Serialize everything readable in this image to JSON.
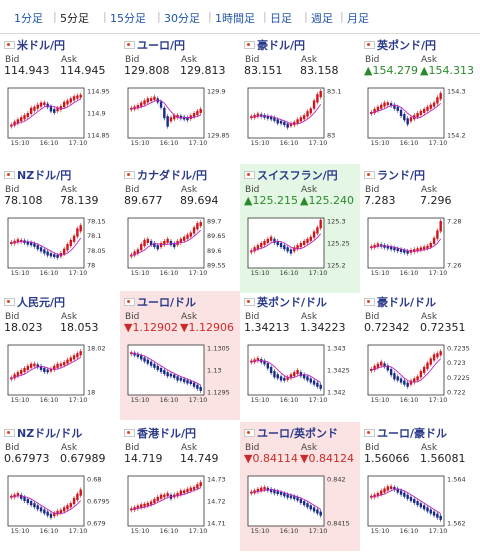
{
  "tabs": [
    {
      "label": "1分足",
      "active": false
    },
    {
      "label": "5分足",
      "active": true
    },
    {
      "label": "15分足",
      "active": false
    },
    {
      "label": "30分足",
      "active": false
    },
    {
      "label": "1時間足",
      "active": false
    },
    {
      "label": "日足",
      "active": false
    },
    {
      "label": "週足",
      "active": false
    },
    {
      "label": "月足",
      "active": false
    }
  ],
  "labels": {
    "bid": "Bid",
    "ask": "Ask"
  },
  "time_ticks": [
    "15:10",
    "16:10",
    "17:10"
  ],
  "colors": {
    "candle": "#d0141a",
    "line": "#c026c0",
    "axis": "#333333",
    "up_text": "#2b8a2b",
    "down_text": "#cc2a2a"
  },
  "pairs": [
    {
      "name": "米ドル/円",
      "bid": "114.943",
      "ask": "114.945",
      "dir": "",
      "hl": "",
      "flag": "us-flag-icon",
      "ticks": [
        "114.95",
        "114.9",
        "114.85"
      ],
      "series": [
        0.2,
        0.25,
        0.3,
        0.35,
        0.4,
        0.45,
        0.55,
        0.6,
        0.65,
        0.7,
        0.72,
        0.68,
        0.6,
        0.55,
        0.58,
        0.62,
        0.7,
        0.75,
        0.8,
        0.85,
        0.88,
        0.9
      ]
    },
    {
      "name": "ユーロ/円",
      "bid": "129.808",
      "ask": "129.813",
      "dir": "",
      "hl": "",
      "flag": "eu-flag-icon",
      "ticks": [
        "129.9",
        "129.85"
      ],
      "series": [
        0.6,
        0.62,
        0.65,
        0.7,
        0.75,
        0.8,
        0.82,
        0.85,
        0.8,
        0.7,
        0.5,
        0.3,
        0.35,
        0.4,
        0.42,
        0.4,
        0.38,
        0.36,
        0.4,
        0.45,
        0.5,
        0.55
      ]
    },
    {
      "name": "豪ドル/円",
      "bid": "83.151",
      "ask": "83.158",
      "dir": "",
      "hl": "",
      "flag": "au-flag-icon",
      "ticks": [
        "83.1",
        "83"
      ],
      "series": [
        0.4,
        0.42,
        0.45,
        0.44,
        0.42,
        0.4,
        0.38,
        0.35,
        0.3,
        0.28,
        0.25,
        0.2,
        0.22,
        0.25,
        0.3,
        0.35,
        0.4,
        0.48,
        0.55,
        0.7,
        0.85,
        0.95
      ]
    },
    {
      "name": "英ポンド/円",
      "bid": "154.279",
      "ask": "154.313",
      "dir": "up",
      "hl": "",
      "flag": "gb-flag-icon",
      "ticks": [
        "154.3",
        "154.2"
      ],
      "series": [
        0.5,
        0.55,
        0.6,
        0.65,
        0.7,
        0.72,
        0.7,
        0.65,
        0.6,
        0.5,
        0.4,
        0.3,
        0.35,
        0.4,
        0.45,
        0.5,
        0.55,
        0.6,
        0.65,
        0.7,
        0.8,
        0.9
      ]
    },
    {
      "name": "NZドル/円",
      "bid": "78.108",
      "ask": "78.139",
      "dir": "",
      "hl": "",
      "flag": "nz-flag-icon",
      "ticks": [
        "78.15",
        "78.1",
        "78.05",
        "78"
      ],
      "series": [
        0.5,
        0.52,
        0.55,
        0.55,
        0.53,
        0.5,
        0.48,
        0.45,
        0.4,
        0.35,
        0.3,
        0.25,
        0.22,
        0.2,
        0.18,
        0.22,
        0.3,
        0.4,
        0.5,
        0.6,
        0.75,
        0.85
      ]
    },
    {
      "name": "カナダドル/円",
      "bid": "89.677",
      "ask": "89.694",
      "dir": "",
      "hl": "",
      "flag": "ca-flag-icon",
      "ticks": [
        "89.7",
        "89.65",
        "89.6",
        "89.55"
      ],
      "series": [
        0.2,
        0.25,
        0.3,
        0.4,
        0.5,
        0.55,
        0.5,
        0.45,
        0.4,
        0.45,
        0.5,
        0.55,
        0.5,
        0.45,
        0.5,
        0.55,
        0.6,
        0.65,
        0.7,
        0.8,
        0.9,
        0.95
      ]
    },
    {
      "name": "スイスフラン/円",
      "bid": "125.215",
      "ask": "125.240",
      "dir": "up",
      "hl": "green",
      "flag": "ch-flag-icon",
      "ticks": [
        "125.3",
        "125.25",
        "125.2"
      ],
      "series": [
        0.3,
        0.35,
        0.4,
        0.45,
        0.5,
        0.55,
        0.6,
        0.55,
        0.5,
        0.45,
        0.4,
        0.35,
        0.3,
        0.35,
        0.4,
        0.45,
        0.5,
        0.55,
        0.6,
        0.7,
        0.8,
        0.95
      ]
    },
    {
      "name": "ランド/円",
      "bid": "7.283",
      "ask": "7.296",
      "dir": "",
      "hl": "",
      "flag": "za-flag-icon",
      "ticks": [
        "7.28",
        "7.26"
      ],
      "series": [
        0.4,
        0.42,
        0.45,
        0.44,
        0.42,
        0.4,
        0.38,
        0.36,
        0.34,
        0.32,
        0.3,
        0.28,
        0.3,
        0.32,
        0.34,
        0.36,
        0.38,
        0.4,
        0.45,
        0.55,
        0.7,
        0.9
      ]
    },
    {
      "name": "人民元/円",
      "bid": "18.023",
      "ask": "18.053",
      "dir": "",
      "hl": "",
      "flag": "cn-flag-icon",
      "ticks": [
        "18.02",
        "18"
      ],
      "series": [
        0.3,
        0.35,
        0.4,
        0.45,
        0.5,
        0.55,
        0.6,
        0.62,
        0.6,
        0.55,
        0.5,
        0.48,
        0.5,
        0.55,
        0.6,
        0.62,
        0.65,
        0.7,
        0.75,
        0.8,
        0.85,
        0.9
      ]
    },
    {
      "name": "ユーロ/ドル",
      "bid": "1.12902",
      "ask": "1.12906",
      "dir": "down",
      "hl": "red",
      "flag": "eu-flag-icon",
      "ticks": [
        "1.1305",
        "1.13",
        "1.1295"
      ],
      "series": [
        0.9,
        0.88,
        0.85,
        0.8,
        0.75,
        0.7,
        0.65,
        0.6,
        0.55,
        0.5,
        0.45,
        0.4,
        0.38,
        0.35,
        0.3,
        0.28,
        0.25,
        0.22,
        0.2,
        0.15,
        0.1,
        0.05
      ]
    },
    {
      "name": "英ポンド/ドル",
      "bid": "1.34213",
      "ask": "1.34223",
      "dir": "",
      "hl": "",
      "flag": "gb-flag-icon",
      "ticks": [
        "1.343",
        "1.3425",
        "1.342"
      ],
      "series": [
        0.7,
        0.72,
        0.75,
        0.72,
        0.68,
        0.6,
        0.5,
        0.4,
        0.35,
        0.3,
        0.28,
        0.3,
        0.35,
        0.4,
        0.45,
        0.4,
        0.35,
        0.3,
        0.25,
        0.2,
        0.15,
        0.1
      ]
    },
    {
      "name": "豪ドル/ドル",
      "bid": "0.72342",
      "ask": "0.72351",
      "dir": "",
      "hl": "",
      "flag": "au-flag-icon",
      "ticks": [
        "0.7235",
        "0.723",
        "0.7225",
        "0.722"
      ],
      "series": [
        0.5,
        0.55,
        0.6,
        0.65,
        0.62,
        0.55,
        0.45,
        0.35,
        0.3,
        0.25,
        0.2,
        0.15,
        0.2,
        0.25,
        0.3,
        0.4,
        0.5,
        0.6,
        0.7,
        0.8,
        0.85,
        0.9
      ]
    },
    {
      "name": "NZドル/ドル",
      "bid": "0.67973",
      "ask": "0.67989",
      "dir": "",
      "hl": "",
      "flag": "nz-flag-icon",
      "ticks": [
        "0.68",
        "0.6795",
        "0.679"
      ],
      "series": [
        0.6,
        0.62,
        0.65,
        0.6,
        0.55,
        0.5,
        0.45,
        0.4,
        0.35,
        0.3,
        0.25,
        0.2,
        0.15,
        0.18,
        0.22,
        0.25,
        0.3,
        0.35,
        0.4,
        0.5,
        0.6,
        0.7
      ]
    },
    {
      "name": "香港ドル/円",
      "bid": "14.719",
      "ask": "14.749",
      "dir": "",
      "hl": "",
      "flag": "hk-flag-icon",
      "ticks": [
        "14.73",
        "14.72",
        "14.71"
      ],
      "series": [
        0.3,
        0.32,
        0.35,
        0.38,
        0.4,
        0.42,
        0.45,
        0.5,
        0.55,
        0.6,
        0.62,
        0.65,
        0.6,
        0.62,
        0.65,
        0.7,
        0.72,
        0.75,
        0.78,
        0.8,
        0.85,
        0.9
      ]
    },
    {
      "name": "ユーロ/英ポンド",
      "bid": "0.84114",
      "ask": "0.84124",
      "dir": "down",
      "hl": "red",
      "flag": "eu-flag-icon",
      "ticks": [
        "0.842",
        "0.8415"
      ],
      "series": [
        0.7,
        0.72,
        0.75,
        0.78,
        0.8,
        0.78,
        0.75,
        0.72,
        0.7,
        0.68,
        0.65,
        0.62,
        0.6,
        0.58,
        0.55,
        0.5,
        0.45,
        0.4,
        0.35,
        0.3,
        0.25,
        0.2
      ]
    },
    {
      "name": "ユーロ/豪ドル",
      "bid": "1.56066",
      "ask": "1.56081",
      "dir": "",
      "hl": "",
      "flag": "eu-flag-icon",
      "ticks": [
        "1.564",
        "1.562"
      ],
      "series": [
        0.6,
        0.62,
        0.65,
        0.7,
        0.75,
        0.8,
        0.82,
        0.8,
        0.75,
        0.7,
        0.65,
        0.6,
        0.55,
        0.5,
        0.45,
        0.4,
        0.35,
        0.3,
        0.25,
        0.2,
        0.15,
        0.1
      ]
    }
  ]
}
